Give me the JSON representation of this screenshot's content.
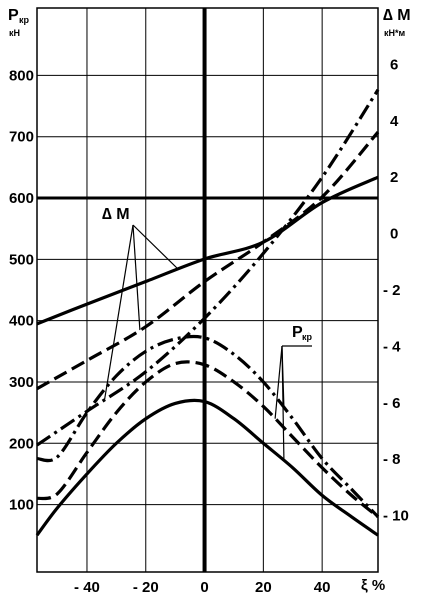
{
  "chart_data": {
    "type": "line",
    "x_unit": "ξ %",
    "x_ticks": [
      -40,
      -20,
      0,
      20,
      40
    ],
    "x_tick_labels": [
      "- 40",
      "- 20",
      "0",
      "20",
      "40"
    ],
    "xlim": [
      -57,
      59
    ],
    "left_axis": {
      "label": "P",
      "label_sub": "кр",
      "unit": "кН",
      "ticks": [
        100,
        200,
        300,
        400,
        500,
        600,
        700,
        800
      ],
      "ylim": [
        -10,
        910
      ]
    },
    "right_axis": {
      "label": "∆ М",
      "unit": "кН*м",
      "ticks": [
        6,
        4,
        2,
        0,
        -2,
        -4,
        -6,
        -8,
        -10
      ],
      "tick_labels": [
        "6",
        "4",
        "2",
        "0",
        "- 2",
        "- 4",
        "- 6",
        "- 8",
        "- 10"
      ],
      "ylim": [
        -12,
        8
      ]
    },
    "annotations": [
      {
        "text": "∆ M",
        "group": "delta_m"
      },
      {
        "text": "P",
        "sub": "кр",
        "group": "p_kr"
      }
    ],
    "series": [
      {
        "group": "delta_m",
        "axis": "right",
        "style": "solid",
        "x": [
          -57,
          -40,
          -20,
          0,
          20,
          40,
          59
        ],
        "y": [
          -3.2,
          -2.5,
          -1.7,
          -0.9,
          -0.3,
          1.1,
          2.0
        ]
      },
      {
        "group": "delta_m",
        "axis": "right",
        "style": "dash",
        "x": [
          -57,
          -40,
          -20,
          0,
          20,
          40,
          59
        ],
        "y": [
          -5.5,
          -4.5,
          -3.3,
          -1.7,
          -0.3,
          1.3,
          3.6
        ]
      },
      {
        "group": "delta_m",
        "axis": "right",
        "style": "dashdot",
        "x": [
          -57,
          -40,
          -20,
          0,
          20,
          40,
          59
        ],
        "y": [
          -7.5,
          -6.3,
          -4.9,
          -3.0,
          -0.7,
          2.0,
          5.1
        ]
      },
      {
        "group": "p_kr",
        "axis": "left",
        "style": "dashdot",
        "x": [
          -57,
          -50,
          -40,
          -30,
          -20,
          -10,
          0,
          10,
          20,
          30,
          40,
          50,
          59
        ],
        "y": [
          175,
          178,
          250,
          310,
          350,
          370,
          372,
          345,
          300,
          240,
          175,
          125,
          80
        ]
      },
      {
        "group": "p_kr",
        "axis": "left",
        "style": "dash",
        "x": [
          -57,
          -50,
          -40,
          -30,
          -20,
          -10,
          0,
          10,
          20,
          30,
          40,
          50,
          59
        ],
        "y": [
          110,
          118,
          185,
          250,
          300,
          330,
          328,
          300,
          260,
          210,
          160,
          115,
          80
        ]
      },
      {
        "group": "p_kr",
        "axis": "left",
        "style": "solid",
        "x": [
          -57,
          -50,
          -40,
          -30,
          -20,
          -10,
          0,
          10,
          20,
          30,
          40,
          50,
          59
        ],
        "y": [
          50,
          95,
          150,
          200,
          240,
          265,
          268,
          240,
          200,
          160,
          115,
          80,
          50
        ]
      }
    ]
  }
}
